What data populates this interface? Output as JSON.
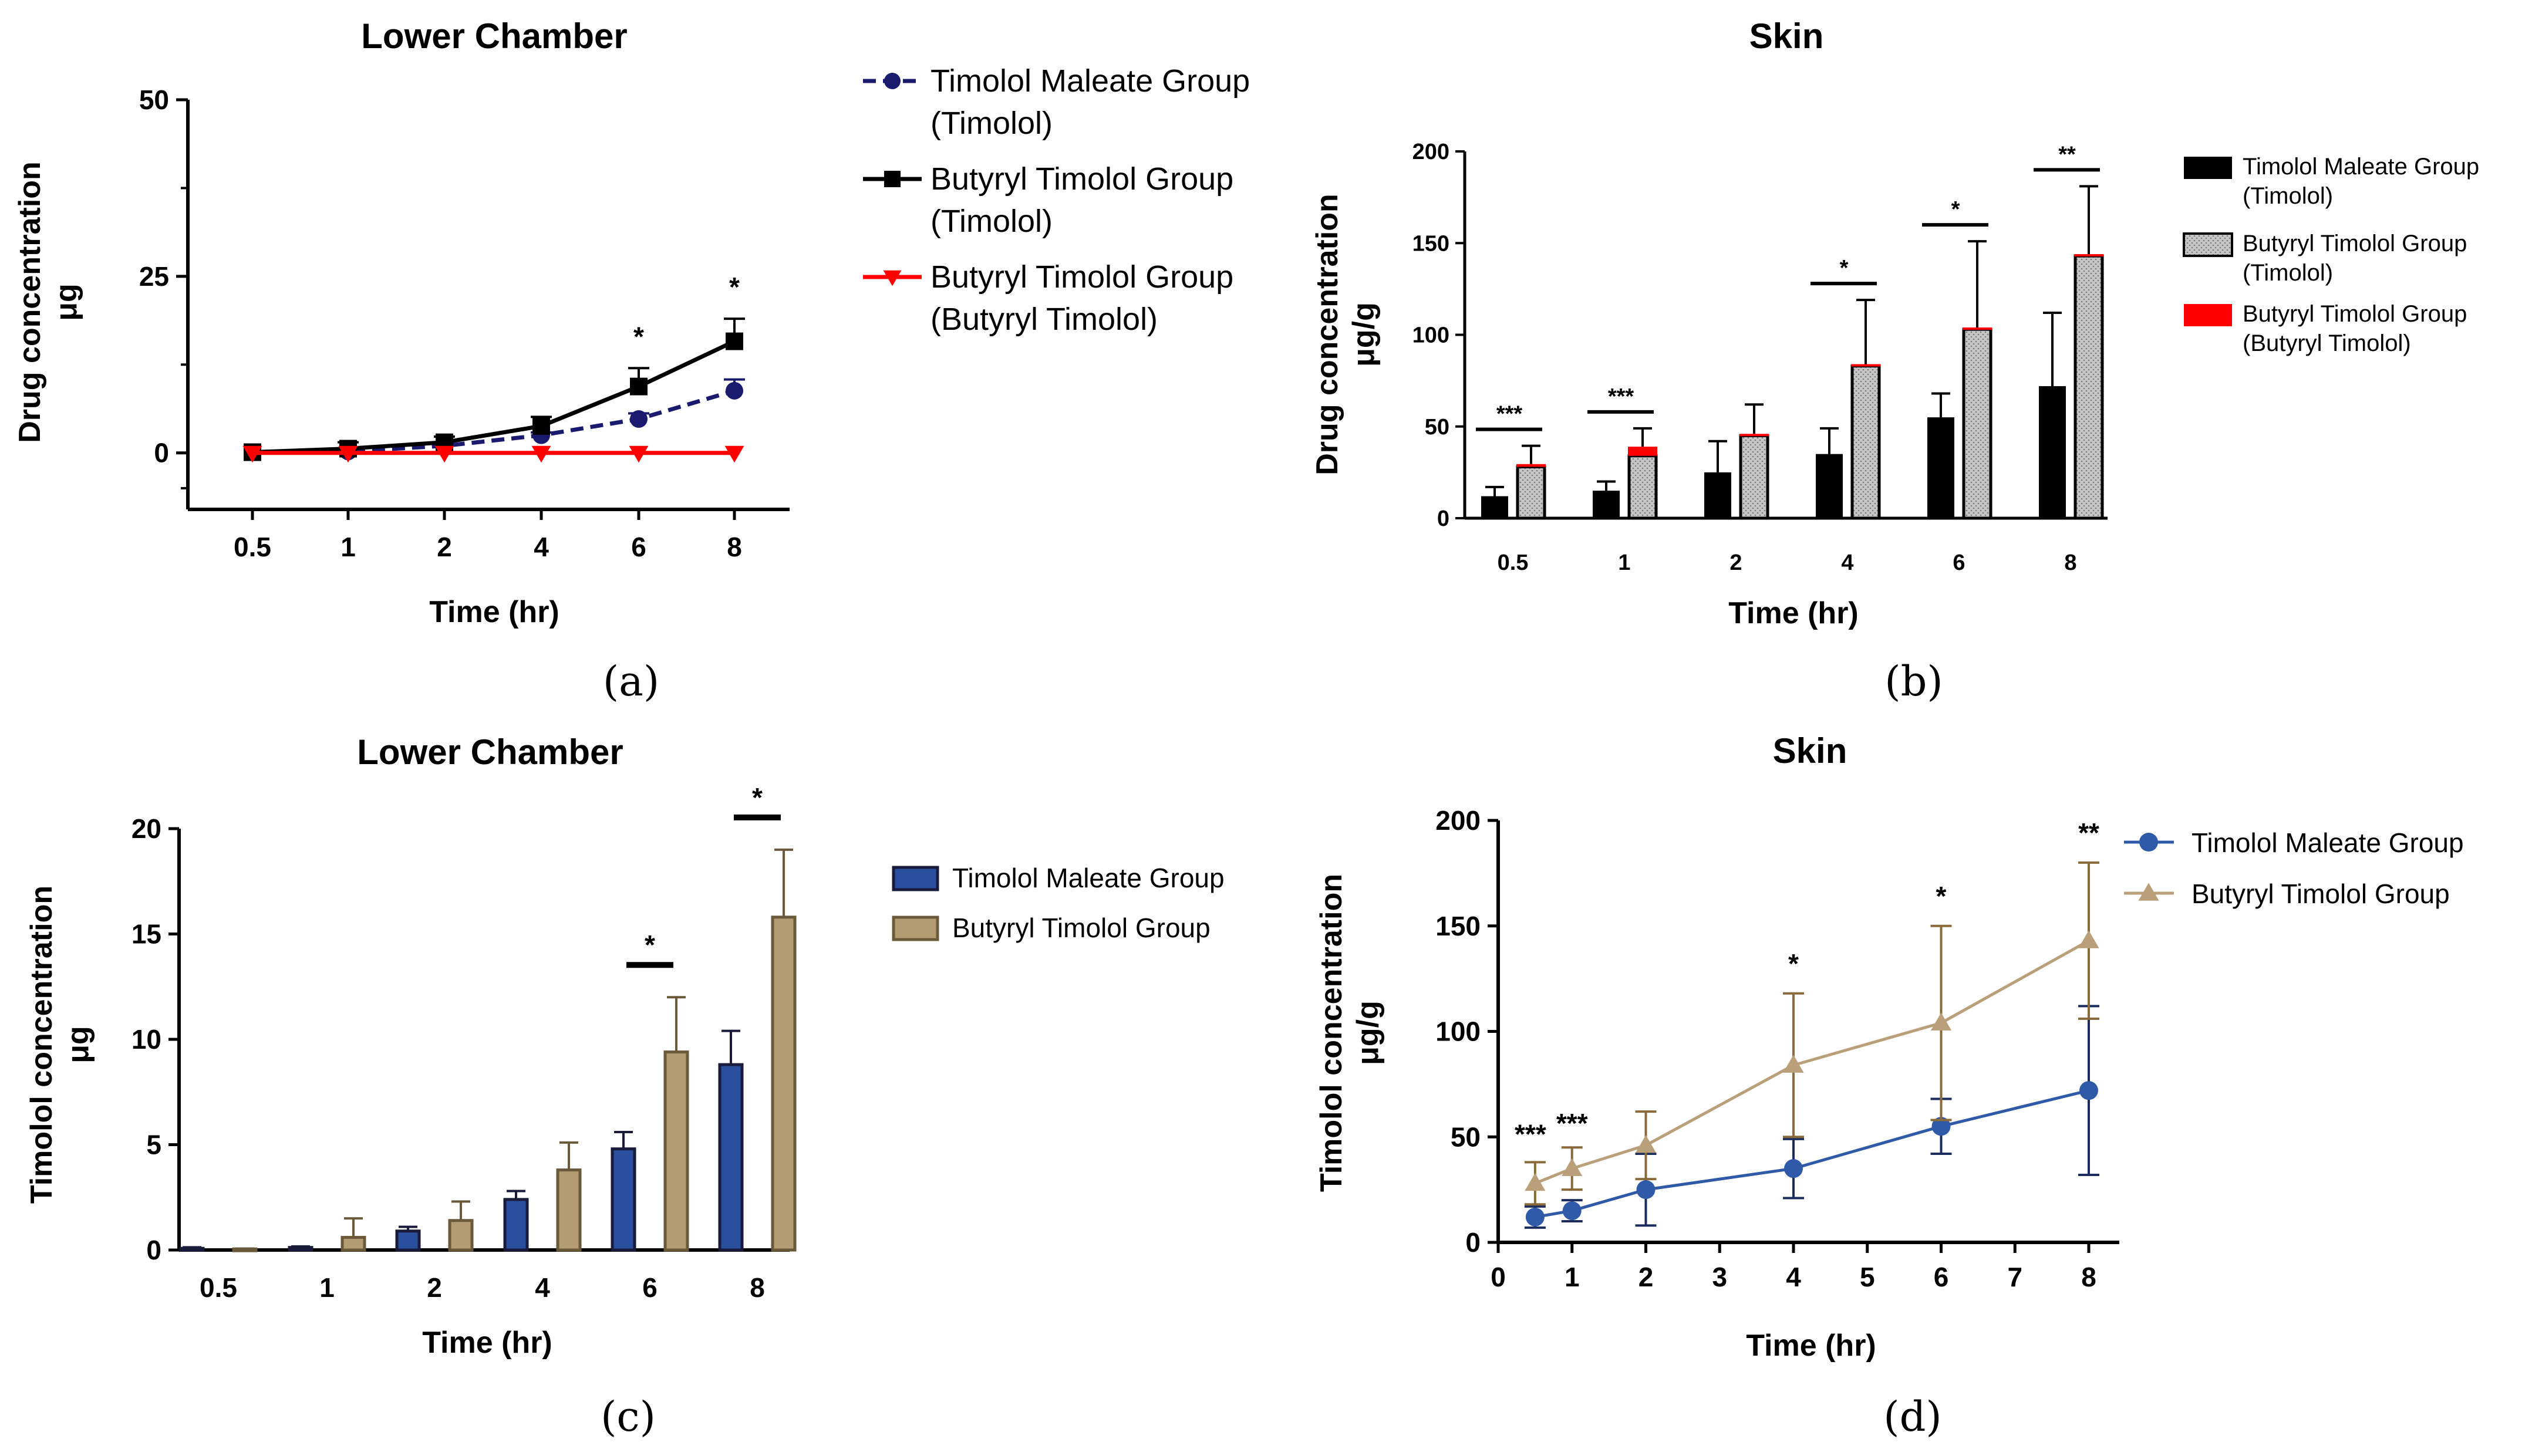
{
  "chart_data": [
    {
      "panel": "(a)",
      "type": "line",
      "title": "Lower Chamber",
      "xlabel": "Time (hr)",
      "ylabel": "Drug concentration",
      "ylabel_unit": "μg",
      "categories": [
        "0.5",
        "1",
        "2",
        "4",
        "6",
        "8"
      ],
      "ylim": [
        -8,
        50
      ],
      "yticks": [
        "0",
        "25",
        "50"
      ],
      "legend": "right",
      "series": [
        {
          "name": "Timolol Maleate Group",
          "name2": "(Timolol)",
          "color": "#1a1a6e",
          "marker": "circle",
          "dashed": true,
          "values": [
            0.1,
            0.2,
            1.0,
            2.5,
            4.8,
            8.8
          ],
          "errors": [
            0.1,
            0.2,
            0.2,
            0.4,
            0.8,
            1.6
          ]
        },
        {
          "name": "Butyryl Timolol Group",
          "name2": "(Timolol)",
          "color": "#000000",
          "marker": "square",
          "dashed": false,
          "values": [
            0.1,
            0.6,
            1.5,
            3.8,
            9.4,
            15.8
          ],
          "errors": [
            0.1,
            0.9,
            0.8,
            1.3,
            2.6,
            3.2
          ]
        },
        {
          "name": "Butyryl Timolol Group",
          "name2": "(Butyryl Timolol)",
          "color": "#ff0000",
          "marker": "triangle-down",
          "dashed": false,
          "values": [
            0,
            0,
            0,
            0,
            0,
            0
          ],
          "errors": [
            0,
            0,
            0,
            0,
            0,
            0
          ]
        }
      ],
      "significance": [
        {
          "category": "6",
          "label": "*"
        },
        {
          "category": "8",
          "label": "*"
        }
      ]
    },
    {
      "panel": "(b)",
      "type": "bar",
      "title": "Skin",
      "xlabel": "Time (hr)",
      "ylabel": "Drug concentration",
      "ylabel_unit": "μg/g",
      "categories": [
        "0.5",
        "1",
        "2",
        "4",
        "6",
        "8"
      ],
      "ylim": [
        0,
        200
      ],
      "yticks": [
        "0",
        "50",
        "100",
        "150",
        "200"
      ],
      "legend": "right",
      "series": [
        {
          "name": "Timolol Maleate Group",
          "name2": "(Timolol)",
          "color": "#000000",
          "values": [
            12,
            15,
            25,
            35,
            55,
            72
          ],
          "errors": [
            5,
            5,
            17,
            14,
            13,
            40
          ]
        },
        {
          "name": "Butyryl Timolol Group",
          "name2": "(Timolol)",
          "color": "#b8b8b8",
          "values": [
            28,
            34,
            45,
            83,
            103,
            143
          ],
          "errors": [
            10,
            10,
            16,
            35,
            47,
            37
          ]
        },
        {
          "name": "Butyryl Timolol Group",
          "name2": "(Butyryl Timolol)",
          "color": "#ff0000",
          "values": [
            1.5,
            5,
            1,
            1,
            1,
            1
          ],
          "errors": [
            0,
            0,
            0,
            0,
            0,
            0
          ]
        }
      ],
      "significance": [
        {
          "category": "0.5",
          "label": "***"
        },
        {
          "category": "1",
          "label": "***"
        },
        {
          "category": "4",
          "label": "*"
        },
        {
          "category": "6",
          "label": "*"
        },
        {
          "category": "8",
          "label": "**"
        }
      ]
    },
    {
      "panel": "(c)",
      "type": "bar",
      "title": "Lower Chamber",
      "xlabel": "Time (hr)",
      "ylabel": "Timolol concentration",
      "ylabel_unit": "μg",
      "categories": [
        "0.5",
        "1",
        "2",
        "4",
        "6",
        "8"
      ],
      "ylim": [
        0,
        20
      ],
      "yticks": [
        "0",
        "5",
        "10",
        "15",
        "20"
      ],
      "legend": "right",
      "series": [
        {
          "name": "Timolol Maleate Group",
          "color": "#2a4f9e",
          "values": [
            0.08,
            0.12,
            0.9,
            2.4,
            4.8,
            8.8
          ],
          "errors": [
            0.05,
            0.05,
            0.2,
            0.4,
            0.8,
            1.6
          ]
        },
        {
          "name": "Butyryl Timolol Group",
          "color": "#b39c72",
          "values": [
            0.05,
            0.6,
            1.4,
            3.8,
            9.4,
            15.8
          ],
          "errors": [
            0.02,
            0.9,
            0.9,
            1.3,
            2.6,
            3.2
          ]
        }
      ],
      "significance": [
        {
          "category": "6",
          "label": "*"
        },
        {
          "category": "8",
          "label": "*"
        }
      ]
    },
    {
      "panel": "(d)",
      "type": "line",
      "title": "Skin",
      "xlabel": "Time (hr)",
      "ylabel": "Timolol concentration",
      "ylabel_unit": "μg/g",
      "xlim": [
        0,
        8
      ],
      "xticks": [
        "0",
        "1",
        "2",
        "3",
        "4",
        "5",
        "6",
        "7",
        "8"
      ],
      "ylim": [
        0,
        200
      ],
      "yticks": [
        "0",
        "50",
        "100",
        "150",
        "200"
      ],
      "legend": "right",
      "x": [
        0.5,
        1,
        2,
        4,
        6,
        8
      ],
      "series": [
        {
          "name": "Timolol Maleate Group",
          "color": "#2f5aa8",
          "marker": "circle",
          "values": [
            12,
            15,
            25,
            35,
            55,
            72
          ],
          "errors": [
            5,
            5,
            17,
            14,
            13,
            40
          ]
        },
        {
          "name": "Butyryl Timolol Group",
          "color": "#b9a07a",
          "marker": "triangle",
          "values": [
            28,
            35,
            46,
            84,
            104,
            143
          ],
          "errors": [
            10,
            10,
            16,
            34,
            46,
            37
          ]
        }
      ],
      "significance": [
        {
          "x": 0.5,
          "label": "***"
        },
        {
          "x": 1,
          "label": "***"
        },
        {
          "x": 4,
          "label": "*"
        },
        {
          "x": 6,
          "label": "*"
        },
        {
          "x": 8,
          "label": "**"
        }
      ]
    }
  ]
}
